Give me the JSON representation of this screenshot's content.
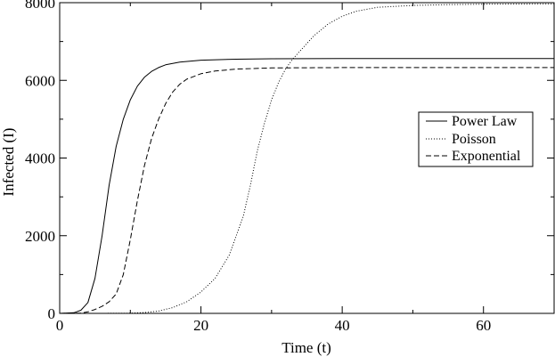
{
  "chart_data": {
    "type": "line",
    "title": "",
    "xlabel": "Time (t)",
    "ylabel": "Infected (I)",
    "xlim": [
      0,
      70
    ],
    "ylim": [
      0,
      8000
    ],
    "xticks": [
      0,
      20,
      40,
      60
    ],
    "yticks": [
      0,
      2000,
      4000,
      6000,
      8000
    ],
    "grid": false,
    "legend_position": "right",
    "series": [
      {
        "name": "Power Law",
        "style": "solid",
        "color": "#000000",
        "points": [
          [
            0,
            0
          ],
          [
            2,
            15
          ],
          [
            3,
            80
          ],
          [
            4,
            280
          ],
          [
            5,
            900
          ],
          [
            6,
            2000
          ],
          [
            7,
            3300
          ],
          [
            8,
            4300
          ],
          [
            9,
            5000
          ],
          [
            10,
            5500
          ],
          [
            11,
            5850
          ],
          [
            12,
            6080
          ],
          [
            13,
            6230
          ],
          [
            14,
            6330
          ],
          [
            15,
            6400
          ],
          [
            17,
            6470
          ],
          [
            20,
            6520
          ],
          [
            25,
            6545
          ],
          [
            30,
            6555
          ],
          [
            40,
            6560
          ],
          [
            50,
            6560
          ],
          [
            60,
            6560
          ],
          [
            70,
            6560
          ]
        ]
      },
      {
        "name": "Poisson",
        "style": "dotted",
        "color": "#000000",
        "points": [
          [
            0,
            0
          ],
          [
            5,
            0
          ],
          [
            10,
            5
          ],
          [
            12,
            20
          ],
          [
            14,
            60
          ],
          [
            16,
            150
          ],
          [
            18,
            300
          ],
          [
            20,
            550
          ],
          [
            22,
            900
          ],
          [
            24,
            1500
          ],
          [
            26,
            2500
          ],
          [
            27,
            3300
          ],
          [
            28,
            4200
          ],
          [
            29,
            4900
          ],
          [
            30,
            5500
          ],
          [
            31,
            5950
          ],
          [
            32,
            6300
          ],
          [
            33,
            6550
          ],
          [
            34,
            6750
          ],
          [
            35,
            6950
          ],
          [
            36,
            7150
          ],
          [
            38,
            7450
          ],
          [
            40,
            7650
          ],
          [
            42,
            7780
          ],
          [
            45,
            7880
          ],
          [
            50,
            7930
          ],
          [
            55,
            7950
          ],
          [
            60,
            7960
          ],
          [
            65,
            7965
          ],
          [
            70,
            7970
          ]
        ]
      },
      {
        "name": "Exponential",
        "style": "dashed",
        "color": "#000000",
        "points": [
          [
            0,
            0
          ],
          [
            3,
            10
          ],
          [
            4,
            40
          ],
          [
            5,
            100
          ],
          [
            6,
            180
          ],
          [
            7,
            300
          ],
          [
            8,
            500
          ],
          [
            9,
            1000
          ],
          [
            10,
            1900
          ],
          [
            11,
            2900
          ],
          [
            12,
            3800
          ],
          [
            13,
            4500
          ],
          [
            14,
            5000
          ],
          [
            15,
            5400
          ],
          [
            16,
            5700
          ],
          [
            17,
            5900
          ],
          [
            18,
            6030
          ],
          [
            20,
            6170
          ],
          [
            22,
            6240
          ],
          [
            25,
            6290
          ],
          [
            30,
            6320
          ],
          [
            40,
            6330
          ],
          [
            50,
            6330
          ],
          [
            60,
            6330
          ],
          [
            70,
            6330
          ]
        ]
      }
    ]
  }
}
